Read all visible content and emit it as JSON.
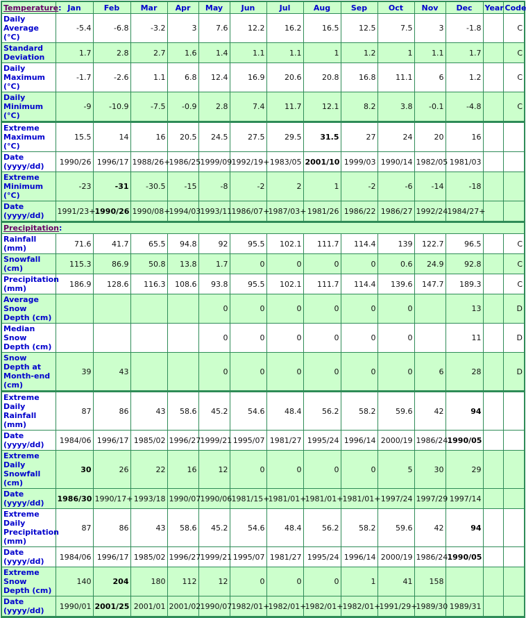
{
  "headers": {
    "months": [
      "Jan",
      "Feb",
      "Mar",
      "Apr",
      "May",
      "Jun",
      "Jul",
      "Aug",
      "Sep",
      "Oct",
      "Nov",
      "Dec"
    ],
    "year": "Year",
    "code": "Code"
  },
  "sections": [
    {
      "title": "Temperature",
      "rows": [
        {
          "label": "Daily Average (°C)",
          "values": [
            "-5.4",
            "-6.8",
            "-3.2",
            "3",
            "7.6",
            "12.2",
            "16.2",
            "16.5",
            "12.5",
            "7.5",
            "3",
            "-1.8"
          ],
          "year": "",
          "code": "C",
          "shaded": false
        },
        {
          "label": "Standard Deviation",
          "values": [
            "1.7",
            "2.8",
            "2.7",
            "1.6",
            "1.4",
            "1.1",
            "1.1",
            "1",
            "1.2",
            "1",
            "1.1",
            "1.7"
          ],
          "year": "",
          "code": "C",
          "shaded": true
        },
        {
          "label": "Daily Maximum (°C)",
          "values": [
            "-1.7",
            "-2.6",
            "1.1",
            "6.8",
            "12.4",
            "16.9",
            "20.6",
            "20.8",
            "16.8",
            "11.1",
            "6",
            "1.2"
          ],
          "year": "",
          "code": "C",
          "shaded": false
        },
        {
          "label": "Daily Minimum (°C)",
          "values": [
            "-9",
            "-10.9",
            "-7.5",
            "-0.9",
            "2.8",
            "7.4",
            "11.7",
            "12.1",
            "8.2",
            "3.8",
            "-0.1",
            "-4.8"
          ],
          "year": "",
          "code": "C",
          "shaded": true
        },
        {
          "label": "Extreme Maximum (°C)",
          "values": [
            "15.5",
            "14",
            "16",
            "20.5",
            "24.5",
            "27.5",
            "29.5",
            "31.5",
            "27",
            "24",
            "20",
            "16"
          ],
          "year": "",
          "code": "",
          "shaded": false,
          "record_month": "Aug"
        },
        {
          "label": "Date (yyyy/dd)",
          "values": [
            "1990/26",
            "1996/17",
            "1988/26+",
            "1986/25",
            "1999/09",
            "1992/19+",
            "1983/05",
            "2001/10",
            "1999/03",
            "1990/14",
            "1982/05",
            "1981/03"
          ],
          "year": "",
          "code": "",
          "shaded": false,
          "record_month": "Aug"
        },
        {
          "label": "Extreme Minimum (°C)",
          "values": [
            "-23",
            "-31",
            "-30.5",
            "-15",
            "-8",
            "-2",
            "2",
            "1",
            "-2",
            "-6",
            "-14",
            "-18"
          ],
          "year": "",
          "code": "",
          "shaded": true,
          "record_month": "Feb"
        },
        {
          "label": "Date (yyyy/dd)",
          "values": [
            "1991/23+",
            "1990/26",
            "1990/08+",
            "1994/03",
            "1993/11",
            "1986/07+",
            "1987/03+",
            "1981/26",
            "1986/22",
            "1986/27",
            "1992/24",
            "1984/27+"
          ],
          "year": "",
          "code": "",
          "shaded": true,
          "record_month": "Feb"
        }
      ]
    },
    {
      "title": "Precipitation",
      "rows": [
        {
          "label": "Rainfall (mm)",
          "values": [
            "71.6",
            "41.7",
            "65.5",
            "94.8",
            "92",
            "95.5",
            "102.1",
            "111.7",
            "114.4",
            "139",
            "122.7",
            "96.5"
          ],
          "year": "",
          "code": "C",
          "shaded": false
        },
        {
          "label": "Snowfall (cm)",
          "values": [
            "115.3",
            "86.9",
            "50.8",
            "13.8",
            "1.7",
            "0",
            "0",
            "0",
            "0",
            "0.6",
            "24.9",
            "92.8"
          ],
          "year": "",
          "code": "C",
          "shaded": true
        },
        {
          "label": "Precipitation (mm)",
          "values": [
            "186.9",
            "128.6",
            "116.3",
            "108.6",
            "93.8",
            "95.5",
            "102.1",
            "111.7",
            "114.4",
            "139.6",
            "147.7",
            "189.3"
          ],
          "year": "",
          "code": "C",
          "shaded": false
        },
        {
          "label": "Average Snow Depth (cm)",
          "values": [
            "",
            "",
            "",
            "",
            "0",
            "0",
            "0",
            "0",
            "0",
            "0",
            "",
            "13"
          ],
          "year": "",
          "code": "D",
          "shaded": true
        },
        {
          "label": "Median Snow Depth (cm)",
          "values": [
            "",
            "",
            "",
            "",
            "0",
            "0",
            "0",
            "0",
            "0",
            "0",
            "",
            "11"
          ],
          "year": "",
          "code": "D",
          "shaded": false
        },
        {
          "label": "Snow Depth at Month-end (cm)",
          "values": [
            "39",
            "43",
            "",
            "",
            "0",
            "0",
            "0",
            "0",
            "0",
            "0",
            "6",
            "28"
          ],
          "year": "",
          "code": "D",
          "shaded": true
        },
        {
          "label": "Extreme Daily Rainfall (mm)",
          "values": [
            "87",
            "86",
            "43",
            "58.6",
            "45.2",
            "54.6",
            "48.4",
            "56.2",
            "58.2",
            "59.6",
            "42",
            "94"
          ],
          "year": "",
          "code": "",
          "shaded": false,
          "record_month": "Dec"
        },
        {
          "label": "Date (yyyy/dd)",
          "values": [
            "1984/06",
            "1996/17",
            "1985/02",
            "1996/27",
            "1999/21",
            "1995/07",
            "1981/27",
            "1995/24",
            "1996/14",
            "2000/19",
            "1986/24",
            "1990/05"
          ],
          "year": "",
          "code": "",
          "shaded": false,
          "record_month": "Dec"
        },
        {
          "label": "Extreme Daily Snowfall (cm)",
          "values": [
            "30",
            "26",
            "22",
            "16",
            "12",
            "0",
            "0",
            "0",
            "0",
            "5",
            "30",
            "29"
          ],
          "year": "",
          "code": "",
          "shaded": true,
          "record_month": "Jan"
        },
        {
          "label": "Date (yyyy/dd)",
          "values": [
            "1986/30",
            "1990/17+",
            "1993/18",
            "1990/07",
            "1990/06",
            "1981/15+",
            "1981/01+",
            "1981/01+",
            "1981/01+",
            "1997/24",
            "1997/29",
            "1997/14"
          ],
          "year": "",
          "code": "",
          "shaded": true,
          "record_month": "Jan"
        },
        {
          "label": "Extreme Daily Precipitation (mm)",
          "values": [
            "87",
            "86",
            "43",
            "58.6",
            "45.2",
            "54.6",
            "48.4",
            "56.2",
            "58.2",
            "59.6",
            "42",
            "94"
          ],
          "year": "",
          "code": "",
          "shaded": false,
          "record_month": "Dec"
        },
        {
          "label": "Date (yyyy/dd)",
          "values": [
            "1984/06",
            "1996/17",
            "1985/02",
            "1996/27",
            "1999/21",
            "1995/07",
            "1981/27",
            "1995/24",
            "1996/14",
            "2000/19",
            "1986/24",
            "1990/05"
          ],
          "year": "",
          "code": "",
          "shaded": false,
          "record_month": "Dec"
        },
        {
          "label": "Extreme Snow Depth (cm)",
          "values": [
            "140",
            "204",
            "180",
            "112",
            "12",
            "0",
            "0",
            "0",
            "1",
            "41",
            "158",
            ""
          ],
          "year": "",
          "code": "",
          "shaded": true,
          "record_month": "Feb"
        },
        {
          "label": "Date (yyyy/dd)",
          "values": [
            "1990/01",
            "2001/25",
            "2001/01",
            "2001/02",
            "1990/07",
            "1982/01+",
            "1982/01+",
            "1982/01+",
            "1982/01+",
            "1991/29+",
            "1989/30",
            "1989/31"
          ],
          "year": "",
          "code": "",
          "shaded": true,
          "record_month": "Feb"
        }
      ]
    }
  ]
}
